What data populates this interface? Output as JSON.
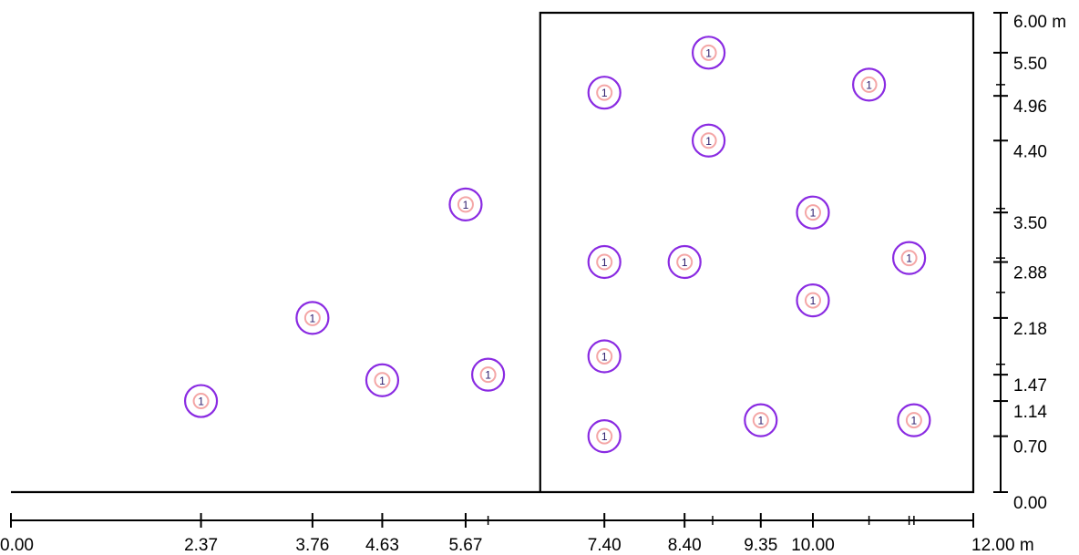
{
  "diagram": {
    "unit": "m",
    "room_outline": [
      [
        0,
        0
      ],
      [
        6.6,
        0
      ],
      [
        6.6,
        5.25
      ],
      [
        6.6,
        6.0
      ],
      [
        12.0,
        6.0
      ],
      [
        12.0,
        0
      ]
    ],
    "room_outline_note": "",
    "luminaire_label": "1",
    "colors": {
      "outline": "#000000",
      "luminaire_ring": "#8a2be2",
      "luminaire_core": "#f4a6a6"
    },
    "x_axis": {
      "ticks": [
        0.0,
        2.37,
        3.76,
        4.63,
        5.67,
        7.4,
        8.4,
        9.35,
        10.0,
        12.0
      ],
      "minor_ticks": [
        5.95,
        8.75,
        10.7,
        11.2,
        11.26
      ],
      "labels": [
        "0.00",
        "2.37",
        "3.76",
        "4.63",
        "5.67",
        "7.40",
        "8.40",
        "9.35",
        "10.00",
        "12.00 m"
      ]
    },
    "y_axis": {
      "ticks": [
        0.0,
        0.7,
        1.14,
        1.47,
        2.18,
        2.88,
        3.5,
        4.4,
        4.96,
        5.5,
        6.0
      ],
      "minor_ticks": [
        1.6,
        2.5,
        2.93,
        3.55,
        5.1
      ],
      "labels": [
        "0.00",
        "0.70",
        "1.14",
        "1.47",
        "2.18",
        "2.88",
        "3.50",
        "4.40",
        "4.96",
        "5.50",
        "6.00 m"
      ]
    },
    "luminaires": [
      {
        "x": 2.37,
        "y": 1.14
      },
      {
        "x": 3.76,
        "y": 2.18
      },
      {
        "x": 4.63,
        "y": 1.4
      },
      {
        "x": 5.67,
        "y": 3.6
      },
      {
        "x": 5.95,
        "y": 1.47
      },
      {
        "x": 7.4,
        "y": 5.0
      },
      {
        "x": 7.4,
        "y": 2.88
      },
      {
        "x": 7.4,
        "y": 1.7
      },
      {
        "x": 7.4,
        "y": 0.7
      },
      {
        "x": 8.4,
        "y": 2.88
      },
      {
        "x": 8.7,
        "y": 5.5
      },
      {
        "x": 8.7,
        "y": 4.4
      },
      {
        "x": 9.35,
        "y": 0.9
      },
      {
        "x": 10.0,
        "y": 3.5
      },
      {
        "x": 10.0,
        "y": 2.4
      },
      {
        "x": 10.7,
        "y": 5.1
      },
      {
        "x": 11.2,
        "y": 2.93
      },
      {
        "x": 11.26,
        "y": 0.9
      }
    ]
  }
}
